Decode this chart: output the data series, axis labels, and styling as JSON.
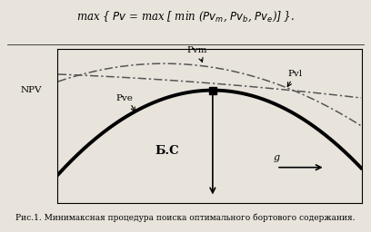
{
  "bg_color": "#e8e4dc",
  "plot_bg": "#e8e4dc",
  "formula": "max { Pv = max [ min (Pv_m, Pv_b, Pv_e)] }.",
  "caption": "Рис.1. Минимаксная процедура поиска оптимального бортового содержания.",
  "npv_label": "NPV",
  "bc_label": "Б.С",
  "g_label": "g",
  "pvm_label": "Pvm",
  "pvl_label": "Pvl",
  "pve_label": "Pve",
  "x_min": 0.0,
  "x_max": 10.0,
  "y_min": -1.6,
  "y_max": 1.0,
  "intersection_x": 5.1,
  "intersection_y": 0.3,
  "npv_y": 0.3,
  "pve_scale": 0.055,
  "pve_peak_x": 5.1,
  "pve_peak_y": 0.3,
  "pvm_scale": 0.025,
  "pvm_peak_x": 3.5,
  "pvm_peak_y": 0.75,
  "pvl_slope": -0.055,
  "pvl_intercept": 0.62
}
